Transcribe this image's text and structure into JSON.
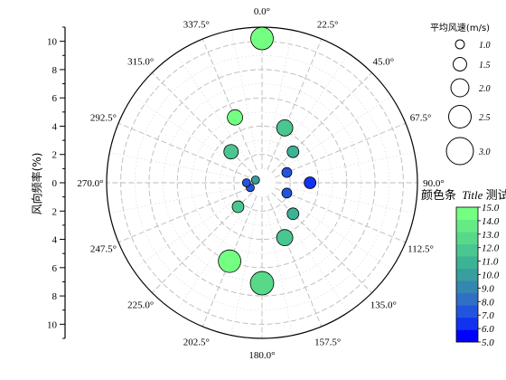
{
  "chart_data": {
    "type": "scatter",
    "subtype": "polar-bubble",
    "angle_unit": "degrees",
    "angle_zero": "top",
    "angle_direction": "clockwise",
    "angle_ticks": [
      0.0,
      22.5,
      45.0,
      67.5,
      90.0,
      112.5,
      135.0,
      157.5,
      180.0,
      202.5,
      225.0,
      247.5,
      270.0,
      292.5,
      315.0,
      337.5
    ],
    "angle_tick_labels": [
      "0.0°",
      "22.5°",
      "45.0°",
      "67.5°",
      "90.0°",
      "112.5°",
      "135.0°",
      "157.5°",
      "180.0°",
      "202.5°",
      "225.0°",
      "247.5°",
      "270.0°",
      "292.5°",
      "315.0°",
      "337.5°"
    ],
    "radial_axis": {
      "label": "风向频率(%)",
      "range": [
        0,
        11
      ],
      "major_ticks": [
        0,
        2,
        4,
        6,
        8,
        10
      ],
      "tick_labels": [
        "0",
        "2",
        "4",
        "6",
        "8",
        "10"
      ]
    },
    "size_legend": {
      "title": "平均风速(m/s)",
      "values": [
        1.0,
        1.5,
        2.0,
        2.5,
        3.0
      ],
      "labels": [
        "1.0",
        "1.5",
        "2.0",
        "2.5",
        "3.0"
      ]
    },
    "colorbar": {
      "title_cn": "颜色条",
      "title_italic": "Title",
      "title_tail": "测试",
      "range": [
        5.0,
        15.0
      ],
      "ticks": [
        "15.0",
        "14.0",
        "13.0",
        "12.0",
        "11.0",
        "10.0",
        "9.0",
        "8.0",
        "7.0",
        "6.0",
        "5.0"
      ],
      "colors": [
        "#0000ff",
        "#1133f0",
        "#2255dd",
        "#2f6fc6",
        "#3487b0",
        "#389e9e",
        "#3cb394",
        "#4ac690",
        "#58d98a",
        "#66ea86",
        "#73ff82"
      ]
    },
    "points": [
      {
        "angle": 0.0,
        "freq": 10.2,
        "speed": 2.5,
        "color_value": 14.5
      },
      {
        "angle": 22.5,
        "freq": 4.2,
        "speed": 1.8,
        "color_value": 12.0
      },
      {
        "angle": 45.0,
        "freq": 3.1,
        "speed": 1.3,
        "color_value": 10.5
      },
      {
        "angle": 67.5,
        "freq": 1.9,
        "speed": 1.1,
        "color_value": 7.5
      },
      {
        "angle": 90.0,
        "freq": 3.4,
        "speed": 1.3,
        "color_value": 6.5
      },
      {
        "angle": 112.5,
        "freq": 1.9,
        "speed": 1.1,
        "color_value": 7.5
      },
      {
        "angle": 135.0,
        "freq": 3.1,
        "speed": 1.3,
        "color_value": 10.5
      },
      {
        "angle": 157.5,
        "freq": 4.2,
        "speed": 1.8,
        "color_value": 12.0
      },
      {
        "angle": 180.0,
        "freq": 7.1,
        "speed": 2.6,
        "color_value": 13.0
      },
      {
        "angle": 202.5,
        "freq": 6.0,
        "speed": 2.5,
        "color_value": 14.8
      },
      {
        "angle": 225.0,
        "freq": 2.4,
        "speed": 1.3,
        "color_value": 11.5
      },
      {
        "angle": 247.5,
        "freq": 0.9,
        "speed": 0.9,
        "color_value": 7.5
      },
      {
        "angle": 270.0,
        "freq": 1.1,
        "speed": 0.9,
        "color_value": 7.5
      },
      {
        "angle": 292.5,
        "freq": 0.5,
        "speed": 0.9,
        "color_value": 10.0
      },
      {
        "angle": 315.0,
        "freq": 3.1,
        "speed": 1.6,
        "color_value": 12.0
      },
      {
        "angle": 337.5,
        "freq": 5.0,
        "speed": 1.7,
        "color_value": 14.5
      }
    ]
  }
}
